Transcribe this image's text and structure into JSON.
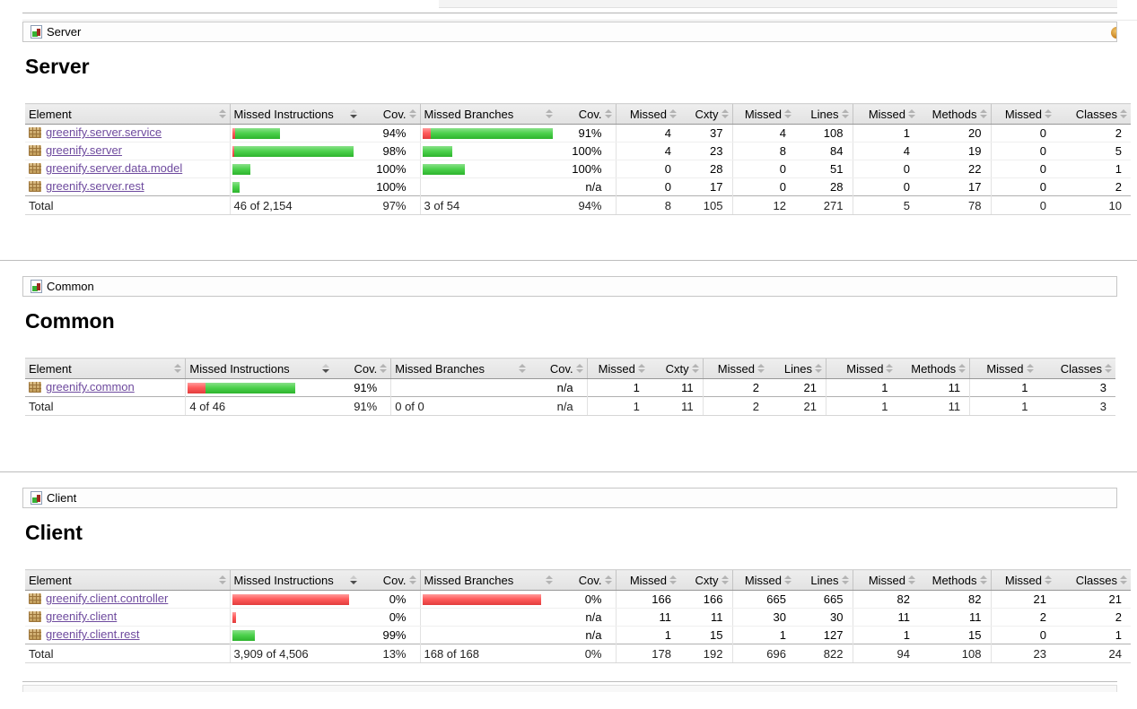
{
  "page": {
    "link_color": "#6e4a9e",
    "bar_green": "#3fc93f",
    "bar_red": "#f25454",
    "sorted_column": "Missed Instructions",
    "sort_direction": "desc"
  },
  "table_columns": [
    "Element",
    "Missed Instructions",
    "Cov.",
    "Missed Branches",
    "Cov.",
    "Missed",
    "Cxty",
    "Missed",
    "Lines",
    "Missed",
    "Methods",
    "Missed",
    "Classes"
  ],
  "sections": [
    {
      "id": "server",
      "breadcrumb": {
        "label": "Server",
        "icon": "report-group-icon",
        "trailing_icon": "sessions-icon"
      },
      "heading": "Server",
      "sorted_column_index": 1,
      "rows": [
        {
          "element": "greenify.server.service",
          "instr_bar": [
            3,
            50
          ],
          "instr_cov": "94%",
          "branch_bar": [
            10,
            138
          ],
          "branch_cov": "91%",
          "cells": [
            "4",
            "37",
            "4",
            "108",
            "1",
            "20",
            "0",
            "2"
          ]
        },
        {
          "element": "greenify.server",
          "instr_bar": [
            2,
            133
          ],
          "instr_cov": "98%",
          "branch_bar": [
            0,
            33
          ],
          "branch_cov": "100%",
          "cells": [
            "4",
            "23",
            "8",
            "84",
            "4",
            "19",
            "0",
            "5"
          ]
        },
        {
          "element": "greenify.server.data.model",
          "instr_bar": [
            0,
            20
          ],
          "instr_cov": "100%",
          "branch_bar": [
            0,
            47
          ],
          "branch_cov": "100%",
          "cells": [
            "0",
            "28",
            "0",
            "51",
            "0",
            "22",
            "0",
            "1"
          ]
        },
        {
          "element": "greenify.server.rest",
          "instr_bar": [
            0,
            8
          ],
          "instr_cov": "100%",
          "branch_bar": [
            0,
            0
          ],
          "branch_cov": "n/a",
          "cells": [
            "0",
            "17",
            "0",
            "28",
            "0",
            "17",
            "0",
            "2"
          ]
        }
      ],
      "total": {
        "label": "Total",
        "instr_text": "46 of 2,154",
        "instr_cov": "97%",
        "branch_text": "3 of 54",
        "branch_cov": "94%",
        "cells": [
          "8",
          "105",
          "12",
          "271",
          "5",
          "78",
          "0",
          "10"
        ]
      }
    },
    {
      "id": "common",
      "breadcrumb": {
        "label": "Common",
        "icon": "report-group-icon"
      },
      "heading": "Common",
      "sorted_column_index": 1,
      "rows": [
        {
          "element": "greenify.common",
          "instr_bar": [
            20,
            100
          ],
          "instr_cov": "91%",
          "branch_bar": [
            0,
            0
          ],
          "branch_cov": "n/a",
          "cells": [
            "1",
            "11",
            "2",
            "21",
            "1",
            "11",
            "1",
            "3"
          ]
        }
      ],
      "total": {
        "label": "Total",
        "instr_text": "4 of 46",
        "instr_cov": "91%",
        "branch_text": "0 of 0",
        "branch_cov": "n/a",
        "cells": [
          "1",
          "11",
          "2",
          "21",
          "1",
          "11",
          "1",
          "3"
        ]
      }
    },
    {
      "id": "client",
      "breadcrumb": {
        "label": "Client",
        "icon": "report-group-icon"
      },
      "heading": "Client",
      "sorted_column_index": 1,
      "rows": [
        {
          "element": "greenify.client.controller",
          "instr_bar": [
            130,
            0
          ],
          "instr_cov": "0%",
          "branch_bar": [
            132,
            0
          ],
          "branch_cov": "0%",
          "cells": [
            "166",
            "166",
            "665",
            "665",
            "82",
            "82",
            "21",
            "21"
          ]
        },
        {
          "element": "greenify.client",
          "instr_bar": [
            4,
            0
          ],
          "instr_cov": "0%",
          "branch_bar": [
            0,
            0
          ],
          "branch_cov": "n/a",
          "cells": [
            "11",
            "11",
            "30",
            "30",
            "11",
            "11",
            "2",
            "2"
          ]
        },
        {
          "element": "greenify.client.rest",
          "instr_bar": [
            0,
            25
          ],
          "instr_cov": "99%",
          "branch_bar": [
            0,
            0
          ],
          "branch_cov": "n/a",
          "cells": [
            "1",
            "15",
            "1",
            "127",
            "1",
            "15",
            "0",
            "1"
          ]
        }
      ],
      "total": {
        "label": "Total",
        "instr_text": "3,909 of 4,506",
        "instr_cov": "13%",
        "branch_text": "168 of 168",
        "branch_cov": "0%",
        "cells": [
          "178",
          "192",
          "696",
          "822",
          "94",
          "108",
          "23",
          "24"
        ]
      }
    }
  ]
}
